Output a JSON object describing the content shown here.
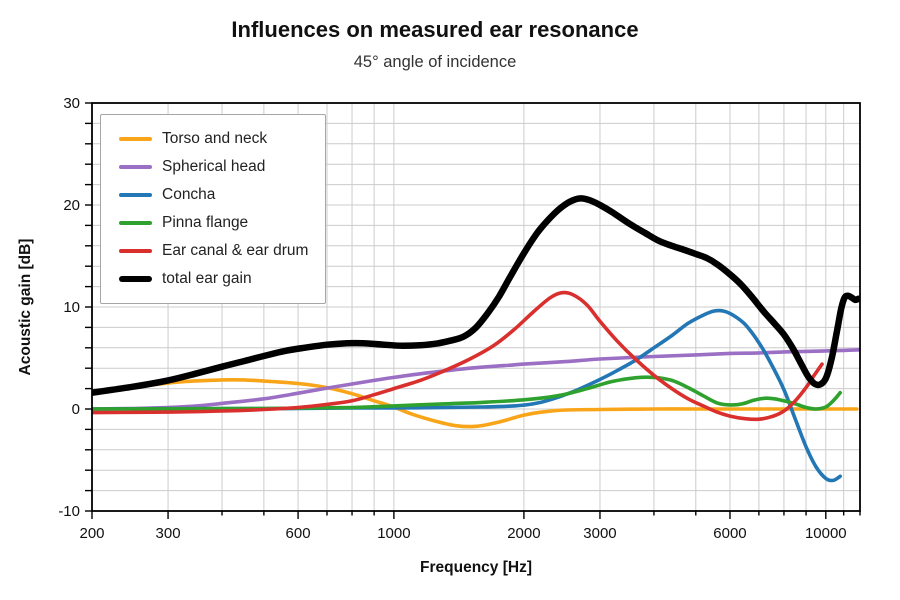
{
  "header": {
    "title": "Influences on measured ear resonance",
    "subtitle": "45° angle of incidence"
  },
  "style": {
    "background": "#ffffff",
    "grid_color": "#cccccc",
    "spine_color": "#000000",
    "text_color": "#111111",
    "legend_border_color": "#a6a6a6"
  },
  "chart_data": {
    "type": "line",
    "title": "Influences on measured ear resonance",
    "subtitle": "45° angle of incidence",
    "xlabel": "Frequency [Hz]",
    "ylabel": "Acoustic gain [dB]",
    "xscale": "log",
    "xlim": [
      200,
      12000
    ],
    "ylim": [
      -10,
      30
    ],
    "grid": true,
    "legend_position": "upper-left",
    "x_major_ticks": [
      200,
      300,
      600,
      1000,
      2000,
      3000,
      6000,
      10000
    ],
    "x_major_tick_labels": [
      "200",
      "300",
      "600",
      "1000",
      "2000",
      "3000",
      "6000",
      "10000"
    ],
    "x_minor_ticks": [
      400,
      500,
      700,
      800,
      900,
      4000,
      5000,
      7000,
      8000,
      9000,
      11000,
      12000
    ],
    "y_major_ticks": [
      -10,
      0,
      10,
      20,
      30
    ],
    "y_major_tick_labels": [
      "-10",
      "0",
      "10",
      "20",
      "30"
    ],
    "y_minor_step": 2,
    "series": [
      {
        "name": "Torso and neck",
        "color": "#f9a51a",
        "width": 3.6,
        "points": [
          [
            200,
            1.5
          ],
          [
            240,
            2.0
          ],
          [
            280,
            2.4
          ],
          [
            330,
            2.7
          ],
          [
            400,
            2.85
          ],
          [
            450,
            2.85
          ],
          [
            520,
            2.7
          ],
          [
            600,
            2.5
          ],
          [
            700,
            2.1
          ],
          [
            800,
            1.5
          ],
          [
            900,
            0.8
          ],
          [
            1000,
            0.2
          ],
          [
            1100,
            -0.5
          ],
          [
            1250,
            -1.2
          ],
          [
            1400,
            -1.65
          ],
          [
            1550,
            -1.7
          ],
          [
            1700,
            -1.4
          ],
          [
            1850,
            -1.0
          ],
          [
            2000,
            -0.6
          ],
          [
            2200,
            -0.3
          ],
          [
            2500,
            -0.1
          ],
          [
            3000,
            -0.05
          ],
          [
            4000,
            0
          ],
          [
            5000,
            0
          ],
          [
            7000,
            0
          ],
          [
            9000,
            0
          ],
          [
            11800,
            0
          ]
        ]
      },
      {
        "name": "Spherical head",
        "color": "#9b6fc3",
        "width": 3.6,
        "points": [
          [
            200,
            0
          ],
          [
            250,
            0.05
          ],
          [
            300,
            0.15
          ],
          [
            350,
            0.3
          ],
          [
            400,
            0.55
          ],
          [
            500,
            1.0
          ],
          [
            600,
            1.55
          ],
          [
            700,
            2.05
          ],
          [
            800,
            2.45
          ],
          [
            900,
            2.8
          ],
          [
            1000,
            3.1
          ],
          [
            1200,
            3.55
          ],
          [
            1500,
            4.0
          ],
          [
            1800,
            4.25
          ],
          [
            2000,
            4.4
          ],
          [
            2500,
            4.65
          ],
          [
            3000,
            4.9
          ],
          [
            4000,
            5.15
          ],
          [
            5000,
            5.3
          ],
          [
            6000,
            5.45
          ],
          [
            7000,
            5.5
          ],
          [
            8000,
            5.6
          ],
          [
            9000,
            5.65
          ],
          [
            10000,
            5.7
          ],
          [
            11000,
            5.75
          ],
          [
            12000,
            5.8
          ]
        ]
      },
      {
        "name": "Concha",
        "color": "#2277b4",
        "width": 3.6,
        "points": [
          [
            200,
            0
          ],
          [
            400,
            0.05
          ],
          [
            600,
            0.05
          ],
          [
            800,
            0.1
          ],
          [
            1000,
            0.1
          ],
          [
            1300,
            0.15
          ],
          [
            1600,
            0.2
          ],
          [
            1900,
            0.3
          ],
          [
            2100,
            0.5
          ],
          [
            2300,
            0.9
          ],
          [
            2600,
            1.7
          ],
          [
            2900,
            2.6
          ],
          [
            3200,
            3.5
          ],
          [
            3600,
            4.7
          ],
          [
            4000,
            6.0
          ],
          [
            4400,
            7.2
          ],
          [
            4800,
            8.4
          ],
          [
            5200,
            9.2
          ],
          [
            5500,
            9.6
          ],
          [
            5800,
            9.6
          ],
          [
            6100,
            9.2
          ],
          [
            6500,
            8.3
          ],
          [
            7000,
            6.5
          ],
          [
            7500,
            4.3
          ],
          [
            8000,
            1.9
          ],
          [
            8500,
            -1.0
          ],
          [
            9000,
            -3.7
          ],
          [
            9500,
            -5.7
          ],
          [
            10000,
            -6.8
          ],
          [
            10400,
            -7.0
          ],
          [
            10800,
            -6.6
          ]
        ]
      },
      {
        "name": "Pinna flange",
        "color": "#2ea12e",
        "width": 3.6,
        "points": [
          [
            200,
            0
          ],
          [
            500,
            0.05
          ],
          [
            800,
            0.15
          ],
          [
            1000,
            0.3
          ],
          [
            1300,
            0.5
          ],
          [
            1600,
            0.65
          ],
          [
            2000,
            0.9
          ],
          [
            2400,
            1.3
          ],
          [
            2800,
            2.0
          ],
          [
            3200,
            2.7
          ],
          [
            3600,
            3.05
          ],
          [
            4000,
            3.1
          ],
          [
            4400,
            2.8
          ],
          [
            4800,
            2.1
          ],
          [
            5200,
            1.3
          ],
          [
            5600,
            0.6
          ],
          [
            6000,
            0.4
          ],
          [
            6400,
            0.5
          ],
          [
            6800,
            0.85
          ],
          [
            7200,
            1.05
          ],
          [
            7600,
            1.0
          ],
          [
            8000,
            0.8
          ],
          [
            8500,
            0.5
          ],
          [
            9000,
            0.15
          ],
          [
            9500,
            0.0
          ],
          [
            10000,
            0.2
          ],
          [
            10400,
            0.8
          ],
          [
            10800,
            1.6
          ]
        ]
      },
      {
        "name": "Ear canal & ear drum",
        "color": "#d9302e",
        "width": 3.6,
        "points": [
          [
            200,
            -0.35
          ],
          [
            300,
            -0.3
          ],
          [
            400,
            -0.2
          ],
          [
            500,
            -0.05
          ],
          [
            600,
            0.15
          ],
          [
            700,
            0.45
          ],
          [
            800,
            0.8
          ],
          [
            900,
            1.4
          ],
          [
            1000,
            2.0
          ],
          [
            1150,
            2.8
          ],
          [
            1300,
            3.7
          ],
          [
            1500,
            4.9
          ],
          [
            1700,
            6.2
          ],
          [
            1900,
            7.8
          ],
          [
            2100,
            9.5
          ],
          [
            2300,
            10.9
          ],
          [
            2450,
            11.4
          ],
          [
            2600,
            11.2
          ],
          [
            2800,
            10.2
          ],
          [
            3000,
            8.6
          ],
          [
            3300,
            6.6
          ],
          [
            3600,
            5.0
          ],
          [
            4000,
            3.3
          ],
          [
            4400,
            2.0
          ],
          [
            4800,
            1.0
          ],
          [
            5200,
            0.3
          ],
          [
            5600,
            -0.3
          ],
          [
            6000,
            -0.7
          ],
          [
            6500,
            -0.95
          ],
          [
            7000,
            -1.0
          ],
          [
            7500,
            -0.75
          ],
          [
            8000,
            -0.2
          ],
          [
            8500,
            0.8
          ],
          [
            9000,
            2.1
          ],
          [
            9400,
            3.3
          ],
          [
            9800,
            4.4
          ]
        ]
      },
      {
        "name": "total ear gain",
        "color": "#000000",
        "width": 6.5,
        "points": [
          [
            200,
            1.6
          ],
          [
            250,
            2.2
          ],
          [
            300,
            2.8
          ],
          [
            350,
            3.5
          ],
          [
            400,
            4.15
          ],
          [
            450,
            4.7
          ],
          [
            500,
            5.2
          ],
          [
            560,
            5.7
          ],
          [
            620,
            6.0
          ],
          [
            700,
            6.3
          ],
          [
            780,
            6.45
          ],
          [
            850,
            6.45
          ],
          [
            950,
            6.3
          ],
          [
            1050,
            6.2
          ],
          [
            1150,
            6.25
          ],
          [
            1250,
            6.4
          ],
          [
            1350,
            6.7
          ],
          [
            1450,
            7.1
          ],
          [
            1550,
            8.0
          ],
          [
            1650,
            9.4
          ],
          [
            1750,
            11.0
          ],
          [
            1850,
            12.8
          ],
          [
            1950,
            14.5
          ],
          [
            2050,
            16.0
          ],
          [
            2150,
            17.3
          ],
          [
            2250,
            18.3
          ],
          [
            2400,
            19.5
          ],
          [
            2550,
            20.3
          ],
          [
            2700,
            20.65
          ],
          [
            2850,
            20.45
          ],
          [
            3000,
            20.0
          ],
          [
            3200,
            19.3
          ],
          [
            3500,
            18.2
          ],
          [
            3800,
            17.3
          ],
          [
            4100,
            16.5
          ],
          [
            4400,
            16.0
          ],
          [
            4700,
            15.6
          ],
          [
            5000,
            15.2
          ],
          [
            5300,
            14.8
          ],
          [
            5600,
            14.2
          ],
          [
            6000,
            13.2
          ],
          [
            6400,
            12.1
          ],
          [
            6800,
            10.8
          ],
          [
            7200,
            9.5
          ],
          [
            7600,
            8.4
          ],
          [
            8000,
            7.3
          ],
          [
            8400,
            5.9
          ],
          [
            8800,
            4.3
          ],
          [
            9100,
            3.2
          ],
          [
            9400,
            2.5
          ],
          [
            9700,
            2.4
          ],
          [
            10000,
            3.0
          ],
          [
            10300,
            4.8
          ],
          [
            10600,
            7.5
          ],
          [
            10850,
            9.8
          ],
          [
            11050,
            10.9
          ],
          [
            11250,
            11.1
          ],
          [
            11500,
            10.9
          ],
          [
            11700,
            10.7
          ],
          [
            11900,
            10.8
          ]
        ]
      }
    ]
  }
}
